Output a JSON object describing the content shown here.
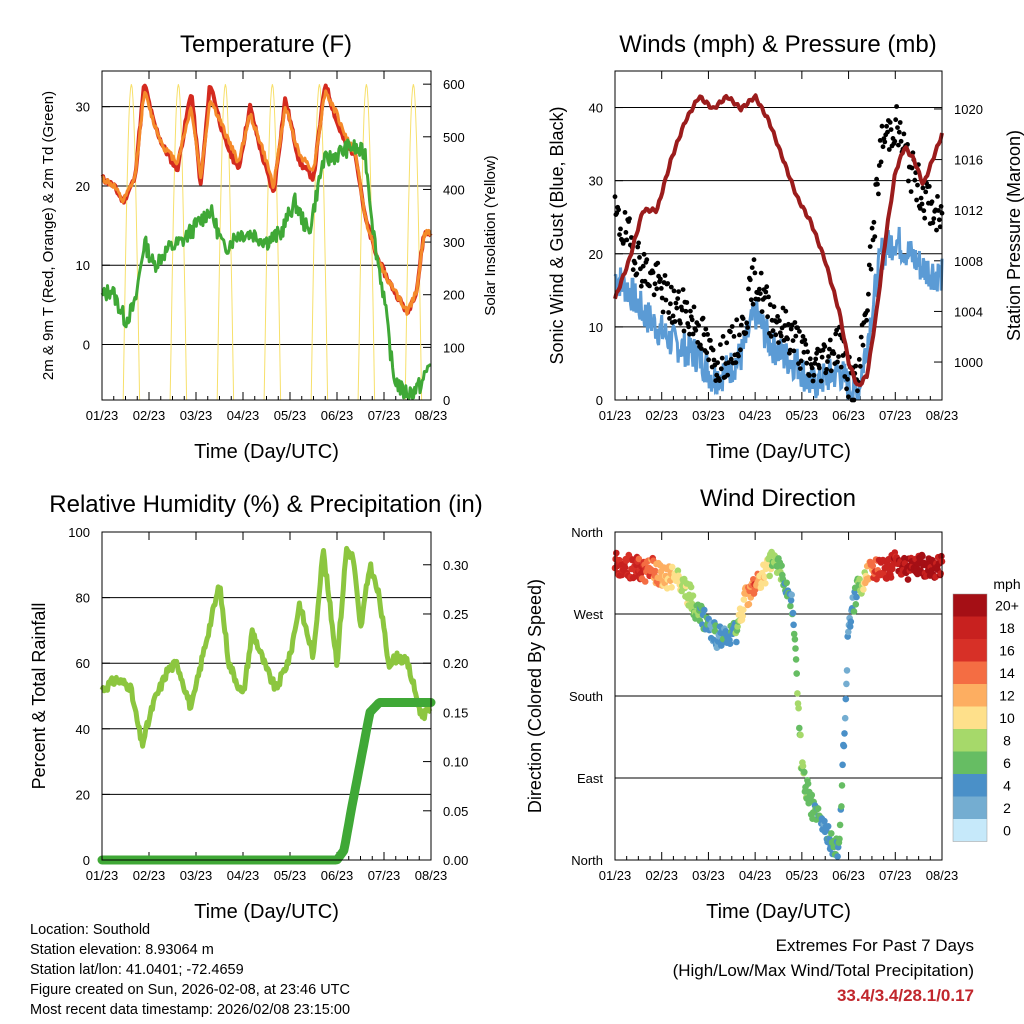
{
  "chart_data": [
    {
      "id": "temp",
      "type": "line",
      "title": "Temperature (F)",
      "xlabel": "Time (Day/UTC)",
      "ylabel": "2m & 9m T (Red, Orange) & 2m Td (Green)",
      "y2label": "Solar Insolation (Yellow)",
      "x_ticks": [
        "01/23",
        "02/23",
        "03/23",
        "04/23",
        "05/23",
        "06/23",
        "07/23",
        "08/23"
      ],
      "xlim": [
        0,
        7
      ],
      "ylim": [
        -7,
        34.5
      ],
      "y_ticks": [
        0,
        10,
        20,
        30
      ],
      "y2lim": [
        0,
        625
      ],
      "y2_ticks": [
        0,
        100,
        200,
        300,
        400,
        500,
        600
      ],
      "series": [
        {
          "name": "2m T",
          "color": "#d42a1f",
          "x": [
            0,
            0.25,
            0.45,
            0.7,
            0.9,
            1.1,
            1.3,
            1.6,
            1.9,
            2.1,
            2.3,
            2.6,
            2.9,
            3.15,
            3.4,
            3.65,
            3.9,
            4.2,
            4.5,
            4.75,
            5.0,
            5.2,
            5.4,
            5.6,
            5.85,
            6.1,
            6.3,
            6.5,
            6.7,
            6.85,
            7.0
          ],
          "y": [
            21,
            20,
            18,
            21,
            33,
            28,
            25,
            22,
            32,
            20,
            33,
            26,
            22,
            30,
            24,
            19,
            31,
            23,
            21,
            33,
            28,
            25,
            24,
            16,
            11,
            8,
            6,
            4,
            7,
            14,
            14
          ]
        },
        {
          "name": "9m T",
          "color": "#f58a2a",
          "x": [
            0,
            0.25,
            0.45,
            0.7,
            0.9,
            1.1,
            1.3,
            1.6,
            1.9,
            2.1,
            2.3,
            2.6,
            2.9,
            3.15,
            3.4,
            3.65,
            3.9,
            4.2,
            4.5,
            4.75,
            5.0,
            5.2,
            5.4,
            5.6,
            5.85,
            6.1,
            6.3,
            6.5,
            6.7,
            6.85,
            7.0
          ],
          "y": [
            21,
            20,
            18,
            21,
            32,
            28,
            25,
            23,
            30,
            21,
            31,
            27,
            23,
            29,
            25,
            20,
            30,
            24,
            22,
            32,
            29,
            26,
            24,
            16,
            11,
            8,
            6,
            4,
            7,
            14,
            14
          ]
        },
        {
          "name": "2m Td",
          "color": "#3fa836",
          "x": [
            0,
            0.2,
            0.5,
            0.7,
            0.9,
            1.1,
            1.4,
            1.7,
            2.0,
            2.3,
            2.6,
            2.9,
            3.2,
            3.5,
            3.8,
            4.1,
            4.4,
            4.7,
            5.0,
            5.3,
            5.6,
            5.8,
            6.0,
            6.2,
            6.4,
            6.6,
            6.8,
            7.0
          ],
          "y": [
            6,
            7,
            3,
            5,
            13,
            10,
            12,
            13,
            15,
            17,
            12,
            14,
            14,
            13,
            14,
            18,
            14,
            23,
            24,
            25,
            24,
            13,
            6,
            -4,
            -6,
            -6,
            -5,
            -2
          ]
        }
      ]
    },
    {
      "id": "wind",
      "type": "scatter",
      "title": "Winds (mph) & Pressure (mb)",
      "xlabel": "Time (Day/UTC)",
      "ylabel": "Sonic Wind & Gust (Blue, Black)",
      "y2label": "Station Pressure (Maroon)",
      "x_ticks": [
        "01/23",
        "02/23",
        "03/23",
        "04/23",
        "05/23",
        "06/23",
        "07/23",
        "08/23"
      ],
      "xlim": [
        0,
        7
      ],
      "ylim": [
        0,
        45
      ],
      "y_ticks": [
        0,
        10,
        20,
        30,
        40
      ],
      "y2lim": [
        997,
        1023
      ],
      "y2_ticks": [
        1000,
        1004,
        1008,
        1012,
        1016,
        1020
      ],
      "series": [
        {
          "name": "Sonic Wind",
          "color": "#5b9bd5",
          "x": [
            0,
            0.3,
            0.6,
            0.9,
            1.2,
            1.5,
            1.8,
            2.1,
            2.4,
            2.7,
            3.0,
            3.3,
            3.6,
            3.9,
            4.2,
            4.5,
            4.8,
            5.0,
            5.2,
            5.4,
            5.7,
            6.0,
            6.3,
            6.6,
            7.0
          ],
          "y": [
            17,
            15,
            12,
            10,
            8,
            7,
            6,
            3,
            4,
            6,
            12,
            8,
            6,
            5,
            2,
            3,
            4,
            2,
            1,
            8,
            20,
            22,
            20,
            18,
            17
          ]
        },
        {
          "name": "Gust",
          "color": "#000000",
          "x": [
            0,
            0.3,
            0.6,
            0.9,
            1.2,
            1.5,
            1.8,
            2.1,
            2.4,
            2.7,
            3.0,
            3.3,
            3.6,
            3.9,
            4.2,
            4.5,
            4.8,
            5.0,
            5.2,
            5.4,
            5.7,
            6.0,
            6.3,
            6.6,
            7.0
          ],
          "y": [
            25,
            22,
            18,
            16,
            13,
            12,
            10,
            5,
            6,
            9,
            17,
            12,
            10,
            8,
            4,
            6,
            8,
            3,
            2,
            14,
            35,
            38,
            32,
            28,
            24
          ]
        },
        {
          "name": "Station Pressure",
          "color": "#9b1c1c",
          "axis": "y2",
          "x": [
            0,
            0.3,
            0.6,
            0.9,
            1.2,
            1.5,
            1.8,
            2.1,
            2.4,
            2.7,
            3.0,
            3.3,
            3.6,
            3.9,
            4.2,
            4.5,
            4.8,
            5.0,
            5.2,
            5.4,
            5.6,
            5.8,
            6.0,
            6.2,
            6.4,
            6.6,
            6.8,
            7.0
          ],
          "y": [
            1005,
            1008,
            1012,
            1012,
            1016,
            1019,
            1021,
            1020,
            1021,
            1020,
            1021,
            1019,
            1016,
            1013,
            1011,
            1008,
            1004,
            1000,
            998,
            999,
            1004,
            1010,
            1015,
            1017,
            1016,
            1014,
            1016,
            1018
          ]
        }
      ]
    },
    {
      "id": "rh",
      "type": "line",
      "title": "Relative Humidity (%) & Precipitation (in)",
      "xlabel": "Time (Day/UTC)",
      "ylabel": "Percent & Total Rainfall",
      "x_ticks": [
        "01/23",
        "02/23",
        "03/23",
        "04/23",
        "05/23",
        "06/23",
        "07/23",
        "08/23"
      ],
      "xlim": [
        0,
        7
      ],
      "ylim": [
        0,
        100
      ],
      "y_ticks": [
        0,
        20,
        40,
        60,
        80,
        100
      ],
      "y2lim": [
        0,
        0.3333
      ],
      "y2_ticks": [
        "0.00",
        "0.05",
        "0.10",
        "0.15",
        "0.20",
        "0.25",
        "0.30"
      ],
      "series": [
        {
          "name": "Relative Humidity",
          "color": "#8cc63f",
          "x": [
            0,
            0.3,
            0.6,
            0.85,
            1.1,
            1.4,
            1.6,
            1.9,
            2.2,
            2.5,
            2.7,
            3.0,
            3.2,
            3.5,
            3.7,
            4.0,
            4.2,
            4.5,
            4.7,
            5.0,
            5.2,
            5.35,
            5.5,
            5.7,
            5.9,
            6.1,
            6.3,
            6.5,
            6.8,
            7.0
          ],
          "y": [
            52,
            55,
            53,
            35,
            48,
            58,
            60,
            46,
            66,
            84,
            60,
            50,
            70,
            58,
            52,
            62,
            78,
            62,
            95,
            60,
            95,
            92,
            70,
            90,
            80,
            60,
            62,
            60,
            44,
            46
          ]
        },
        {
          "name": "Total Rainfall",
          "color": "#3fa836",
          "axis": "y2",
          "x": [
            0,
            1,
            2,
            3,
            4,
            5,
            5.15,
            5.3,
            5.5,
            5.7,
            5.9,
            6.0,
            6.5,
            7.0
          ],
          "y": [
            0,
            0,
            0,
            0,
            0,
            0,
            0.01,
            0.05,
            0.1,
            0.15,
            0.16,
            0.16,
            0.16,
            0.16
          ]
        }
      ]
    },
    {
      "id": "dir",
      "type": "scatter",
      "title": "Wind Direction",
      "xlabel": "Time (Day/UTC)",
      "ylabel": "Direction (Colored By Speed)",
      "x_ticks": [
        "01/23",
        "02/23",
        "03/23",
        "04/23",
        "05/23",
        "06/23",
        "07/23",
        "08/23"
      ],
      "xlim": [
        0,
        7
      ],
      "ylim": [
        0,
        360
      ],
      "y_ticks": [
        "North",
        "East",
        "South",
        "West",
        "North"
      ],
      "colorbar_title": "mph",
      "colorbar_labels": [
        "20+",
        "18",
        "16",
        "14",
        "12",
        "10",
        "8",
        "6",
        "4",
        "2",
        "0"
      ],
      "colorbar_colors": [
        "#a50f15",
        "#c8211f",
        "#d73027",
        "#f46d43",
        "#fdae61",
        "#fee08b",
        "#a6d96a",
        "#66bd63",
        "#4a90c8",
        "#74add1",
        "#c6e9fa"
      ],
      "series": [
        {
          "name": "Direction",
          "x": [
            0,
            0.3,
            0.6,
            0.8,
            1.0,
            1.3,
            1.6,
            1.8,
            2.0,
            2.2,
            2.4,
            2.6,
            2.8,
            3.0,
            3.2,
            3.4,
            3.6,
            3.8,
            4.0,
            4.2,
            4.5,
            4.8,
            5.0,
            5.2,
            5.5,
            5.8,
            6.0,
            6.3,
            6.6,
            7.0
          ],
          "y": [
            325,
            322,
            318,
            320,
            310,
            312,
            290,
            270,
            255,
            245,
            240,
            250,
            290,
            300,
            315,
            330,
            310,
            280,
            100,
            60,
            30,
            10,
            260,
            300,
            320,
            318,
            325,
            320,
            322,
            323
          ],
          "speed": [
            18,
            17,
            16,
            14,
            12,
            10,
            8,
            6,
            4,
            4,
            4,
            6,
            12,
            14,
            10,
            8,
            6,
            4,
            8,
            6,
            4,
            6,
            2,
            6,
            14,
            18,
            18,
            20,
            20,
            20
          ]
        }
      ]
    }
  ],
  "footer": {
    "location": "Location: Southold",
    "elevation": "Station elevation: 8.93064 m",
    "latlon": "Station lat/lon: 41.0401; -72.4659",
    "created": "Figure created on Sun, 2026-02-08, at 23:46 UTC",
    "recent": "Most recent data timestamp: 2026/02/08 23:15:00"
  },
  "extremes": {
    "title": "Extremes For Past 7 Days",
    "subtitle": "(High/Low/Max Wind/Total Precipitation)",
    "values": "33.4/3.4/28.1/0.17"
  }
}
